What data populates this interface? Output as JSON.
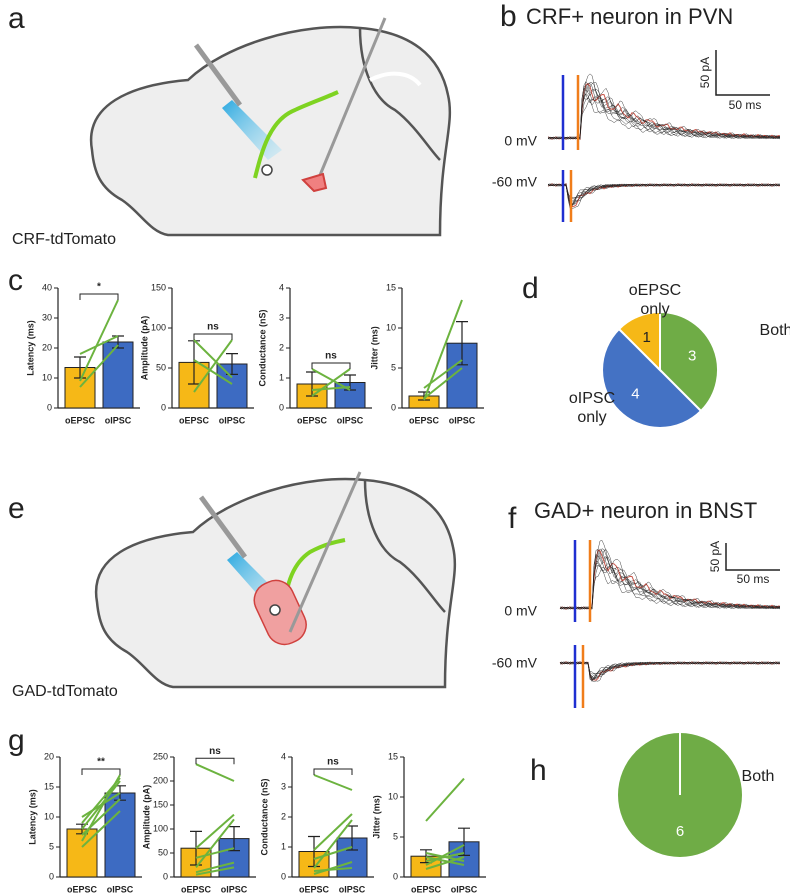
{
  "panels": {
    "a": {
      "letter": "a",
      "label": "CRF-tdTomato"
    },
    "b": {
      "letter": "b",
      "title": "CRF+ neuron in PVN",
      "scale_y": "50 pA",
      "scale_x": "50 ms",
      "traces": [
        "0 mV",
        "-60 mV"
      ]
    },
    "c": {
      "letter": "c"
    },
    "d": {
      "letter": "d"
    },
    "e": {
      "letter": "e",
      "label": "GAD-tdTomato"
    },
    "f": {
      "letter": "f",
      "title": "GAD+ neuron in BNST",
      "scale_y": "50 pA",
      "scale_x": "50 ms",
      "traces": [
        "0 mV",
        "-60 mV"
      ]
    },
    "g": {
      "letter": "g"
    },
    "h": {
      "letter": "h"
    }
  },
  "chart_data": [
    {
      "type": "bar",
      "ylabel": "Latency (ms)",
      "categories": [
        "oEPSC",
        "oIPSC"
      ],
      "values": [
        13.5,
        22
      ],
      "errors": [
        3.5,
        2
      ],
      "colors": [
        "#f6b817",
        "#3d6bc2"
      ],
      "pairs": [
        [
          9,
          36
        ],
        [
          18,
          24
        ],
        [
          7,
          21
        ]
      ],
      "pair_color": "#6cb33f",
      "significance": "*",
      "ylim": [
        0,
        40
      ],
      "yticks": [
        0,
        10,
        20,
        30,
        40
      ]
    },
    {
      "type": "bar",
      "ylabel": "Amplitude (pA)",
      "categories": [
        "oEPSC",
        "oIPSC"
      ],
      "values": [
        57,
        55
      ],
      "errors": [
        27,
        13
      ],
      "colors": [
        "#f6b817",
        "#3d6bc2"
      ],
      "pairs": [
        [
          20,
          85
        ],
        [
          85,
          38
        ],
        [
          60,
          30
        ]
      ],
      "pair_color": "#6cb33f",
      "significance": "ns",
      "ylim": [
        0,
        150
      ],
      "yticks": [
        0,
        50,
        100,
        150
      ]
    },
    {
      "type": "bar",
      "ylabel": "Conductance (nS)",
      "categories": [
        "oEPSC",
        "oIPSC"
      ],
      "values": [
        0.8,
        0.85
      ],
      "errors": [
        0.4,
        0.25
      ],
      "colors": [
        "#f6b817",
        "#3d6bc2"
      ],
      "pairs": [
        [
          1.3,
          0.6
        ],
        [
          0.4,
          1.3
        ],
        [
          0.6,
          0.7
        ]
      ],
      "pair_color": "#6cb33f",
      "significance": "ns",
      "ylim": [
        0,
        4
      ],
      "yticks": [
        0,
        1,
        2,
        3,
        4
      ]
    },
    {
      "type": "bar",
      "ylabel": "Jitter (ms)",
      "categories": [
        "oEPSC",
        "oIPSC"
      ],
      "values": [
        1.5,
        8.1
      ],
      "errors": [
        0.5,
        2.7
      ],
      "colors": [
        "#f6b817",
        "#3d6bc2"
      ],
      "pairs": [
        [
          1,
          13.5
        ],
        [
          2.5,
          6
        ],
        [
          1.2,
          5
        ]
      ],
      "pair_color": "#6cb33f",
      "ylim": [
        0,
        15
      ],
      "yticks": [
        0,
        5,
        10,
        15
      ]
    },
    {
      "type": "pie",
      "categories": [
        "Both",
        "oIPSC only",
        "oEPSC only"
      ],
      "values": [
        3,
        4,
        1
      ],
      "colors": [
        "#6fac46",
        "#4472c4",
        "#f6b817"
      ]
    },
    {
      "type": "bar",
      "ylabel": "Latency (ms)",
      "categories": [
        "oEPSC",
        "oIPSC"
      ],
      "values": [
        8,
        14
      ],
      "errors": [
        0.8,
        1.2
      ],
      "colors": [
        "#f6b817",
        "#3d6bc2"
      ],
      "pairs": [
        [
          6,
          17
        ],
        [
          8,
          16
        ],
        [
          9,
          16.5
        ],
        [
          5,
          11
        ],
        [
          7,
          13
        ],
        [
          10,
          14
        ]
      ],
      "pair_color": "#6cb33f",
      "significance": "**",
      "ylim": [
        0,
        20
      ],
      "yticks": [
        0,
        5,
        10,
        15,
        20
      ]
    },
    {
      "type": "bar",
      "ylabel": "Amplitude (pA)",
      "categories": [
        "oEPSC",
        "oIPSC"
      ],
      "values": [
        60,
        80
      ],
      "errors": [
        35,
        25
      ],
      "colors": [
        "#f6b817",
        "#3d6bc2"
      ],
      "pairs": [
        [
          235,
          200
        ],
        [
          20,
          120
        ],
        [
          60,
          130
        ],
        [
          10,
          30
        ],
        [
          40,
          60
        ],
        [
          5,
          20
        ]
      ],
      "pair_color": "#6cb33f",
      "significance": "ns",
      "ylim": [
        0,
        250
      ],
      "yticks": [
        0,
        50,
        100,
        150,
        200,
        250
      ]
    },
    {
      "type": "bar",
      "ylabel": "Conductance (nS)",
      "categories": [
        "oEPSC",
        "oIPSC"
      ],
      "values": [
        0.85,
        1.3
      ],
      "errors": [
        0.5,
        0.4
      ],
      "colors": [
        "#f6b817",
        "#3d6bc2"
      ],
      "pairs": [
        [
          3.4,
          2.9
        ],
        [
          0.3,
          1.9
        ],
        [
          0.9,
          2.1
        ],
        [
          0.1,
          0.5
        ],
        [
          0.6,
          1
        ],
        [
          0.2,
          0.3
        ]
      ],
      "pair_color": "#6cb33f",
      "significance": "ns",
      "ylim": [
        0,
        4
      ],
      "yticks": [
        0,
        1,
        2,
        3,
        4
      ]
    },
    {
      "type": "bar",
      "ylabel": "Jitter (ms)",
      "categories": [
        "oEPSC",
        "oIPSC"
      ],
      "values": [
        2.6,
        4.4
      ],
      "errors": [
        0.8,
        1.7
      ],
      "colors": [
        "#f6b817",
        "#3d6bc2"
      ],
      "pairs": [
        [
          7,
          12.3
        ],
        [
          2,
          3
        ],
        [
          1.5,
          4
        ],
        [
          3,
          2
        ],
        [
          2.5,
          1.5
        ],
        [
          1,
          2.5
        ]
      ],
      "pair_color": "#6cb33f",
      "ylim": [
        0,
        15
      ],
      "yticks": [
        0,
        5,
        10,
        15
      ]
    },
    {
      "type": "pie",
      "categories": [
        "Both"
      ],
      "values": [
        6
      ],
      "colors": [
        "#6fac46"
      ]
    }
  ]
}
